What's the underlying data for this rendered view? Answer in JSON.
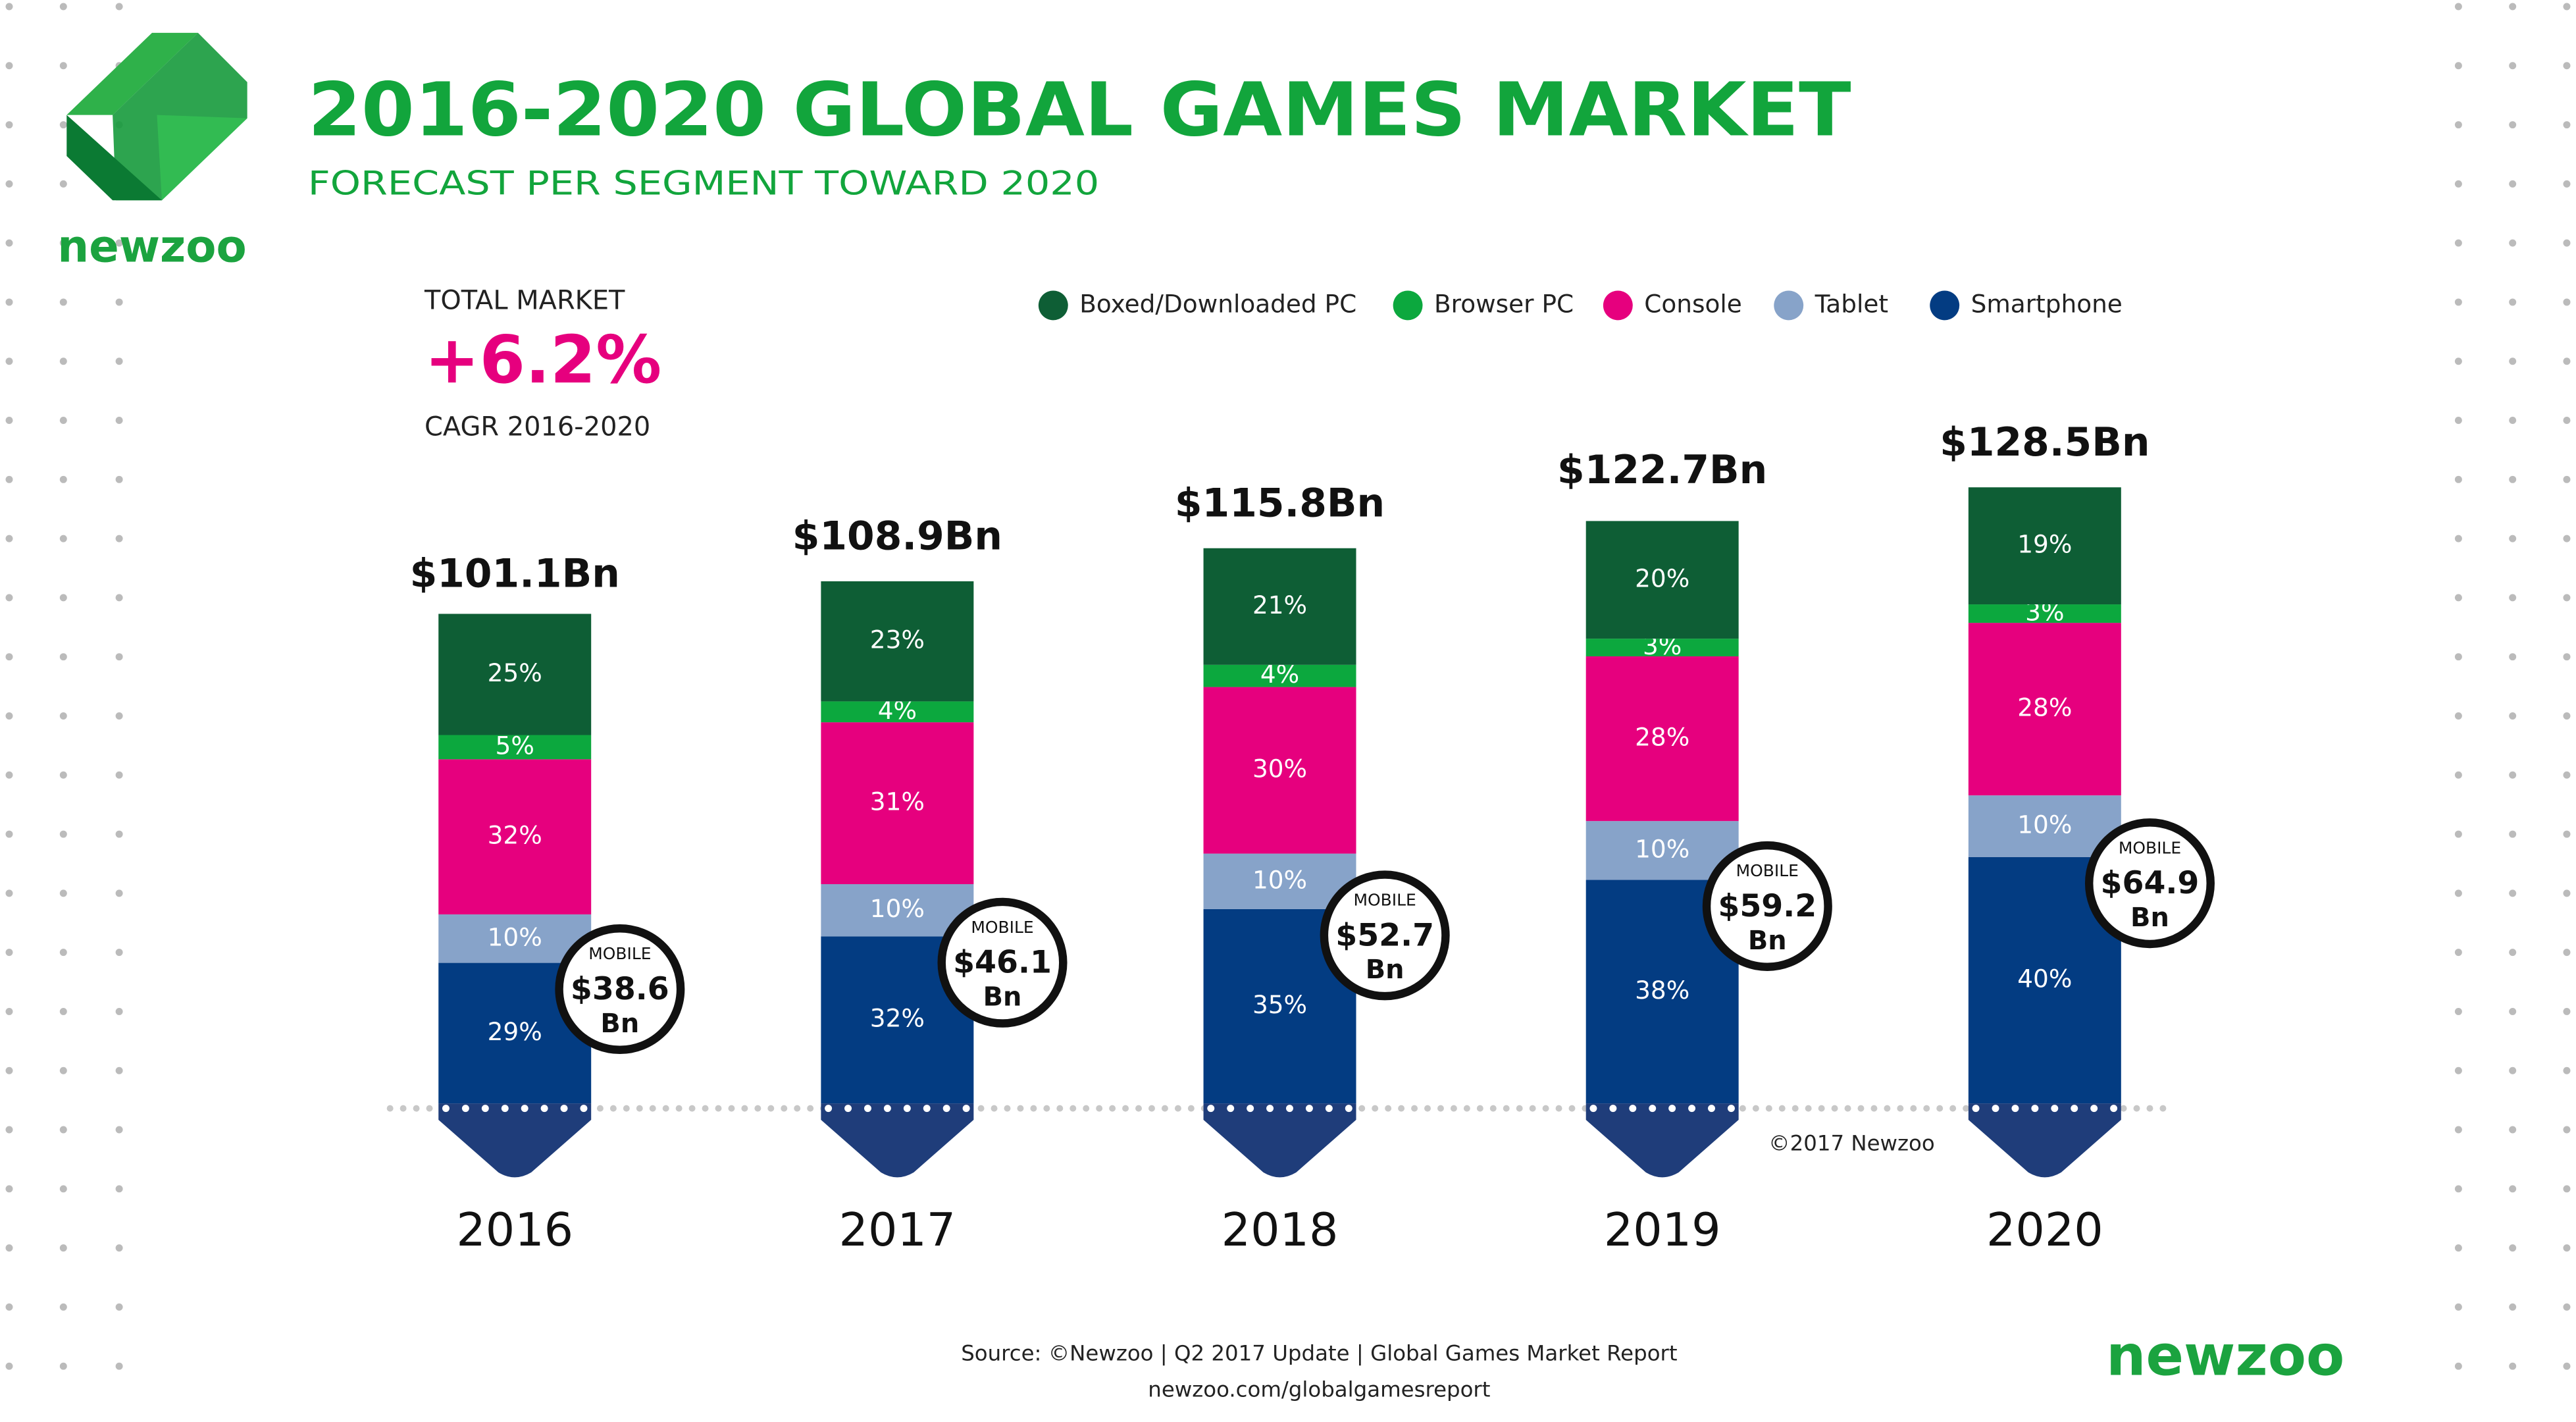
{
  "header": {
    "title": "2016-2020 GLOBAL GAMES MARKET",
    "subtitle": "FORECAST PER SEGMENT TOWARD 2020",
    "brand": "newzoo"
  },
  "callout": {
    "label": "TOTAL MARKET",
    "value": "+6.2%",
    "caption": "CAGR 2016-2020"
  },
  "chart_data": {
    "type": "stacked-bar",
    "categories": [
      "2016",
      "2017",
      "2018",
      "2019",
      "2020"
    ],
    "series": [
      {
        "name": "Boxed/Downloaded PC",
        "color": "#0e5e35",
        "values": [
          25,
          23,
          21,
          20,
          19
        ],
        "value_labels": [
          "25%",
          "23%",
          "21%",
          "20%",
          "19%"
        ]
      },
      {
        "name": "Browser PC",
        "color": "#0ca83e",
        "values": [
          5,
          4,
          4,
          3,
          3
        ],
        "value_labels": [
          "5%",
          "4%",
          "4%",
          "3%",
          "3%"
        ]
      },
      {
        "name": "Console",
        "color": "#e6007e",
        "values": [
          32,
          31,
          30,
          28,
          28
        ],
        "value_labels": [
          "32%",
          "31%",
          "30%",
          "28%",
          "28%"
        ]
      },
      {
        "name": "Tablet",
        "color": "#87a3c9",
        "values": [
          10,
          10,
          10,
          10,
          10
        ],
        "value_labels": [
          "10%",
          "10%",
          "10%",
          "10%",
          "10%"
        ]
      },
      {
        "name": "Smartphone",
        "color": "#033c82",
        "values": [
          29,
          32,
          35,
          38,
          40
        ],
        "value_labels": [
          "29%",
          "32%",
          "35%",
          "38%",
          "40%"
        ]
      }
    ],
    "totals": {
      "values": [
        101.1,
        108.9,
        115.8,
        122.7,
        128.5
      ],
      "value_labels": [
        "$101.1Bn",
        "$108.9Bn",
        "$115.8Bn",
        "$122.7Bn",
        "$128.5Bn"
      ]
    },
    "mobile": {
      "label": "MOBILE",
      "unit": "Bn",
      "values": [
        38.6,
        46.1,
        52.7,
        59.2,
        64.9
      ],
      "value_labels": [
        "$38.6",
        "$46.1",
        "$52.7",
        "$59.2",
        "$64.9"
      ]
    },
    "legend_position": "top"
  },
  "copyright": "©2017 Newzoo",
  "footer": {
    "source": "Source: ©Newzoo | Q2 2017 Update | Global Games Market Report",
    "url": "newzoo.com/globalgamesreport",
    "brand": "newzoo"
  }
}
